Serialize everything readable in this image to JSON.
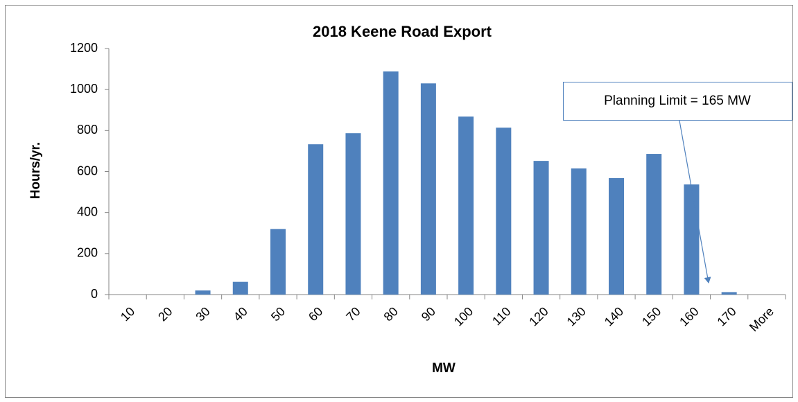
{
  "chart_data": {
    "type": "bar",
    "title": "2018 Keene Road Export",
    "x_label": "MW",
    "y_label": "Hours/yr.",
    "annotation": "Planning Limit = 165 MW",
    "categories": [
      "10",
      "20",
      "30",
      "40",
      "50",
      "60",
      "70",
      "80",
      "90",
      "100",
      "110",
      "120",
      "130",
      "140",
      "150",
      "160",
      "170",
      "More"
    ],
    "values": [
      0,
      0,
      20,
      62,
      320,
      733,
      787,
      1088,
      1030,
      868,
      814,
      652,
      615,
      568,
      686,
      537,
      12,
      0
    ],
    "color": "#4f81bd",
    "ylim": [
      0,
      1200
    ],
    "yticks": [
      0,
      200,
      400,
      600,
      800,
      1000,
      1200
    ],
    "grid": false
  }
}
